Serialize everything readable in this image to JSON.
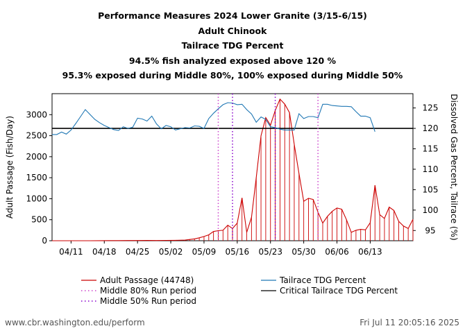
{
  "chart_data": {
    "type": "line",
    "title_lines": [
      "Performance Measures 2024 Lower Granite (3/15-6/15)",
      "Adult Chinook",
      "Tailrace TDG Percent",
      "94.5% fish analyzed exposed above 120 %",
      "95.3% exposed during Middle 80%, 100% exposed during Middle 50%"
    ],
    "xlabel": "",
    "ylabel_left": "Adult Passage (Fish/Day)",
    "ylabel_right": "Dissolved Gas Percent, Tailrace (%)",
    "x_start": "2024-04-07",
    "x_end": "2024-06-15",
    "xtick_labels": [
      "04/11",
      "04/18",
      "04/25",
      "05/02",
      "05/09",
      "05/16",
      "05/23",
      "05/30",
      "06/06",
      "06/13"
    ],
    "xtick_days": [
      4,
      11,
      18,
      25,
      32,
      39,
      46,
      53,
      60,
      67
    ],
    "ylim_left": [
      0,
      3500
    ],
    "yticks_left": [
      0,
      500,
      1000,
      1500,
      2000,
      2500,
      3000
    ],
    "ylim_right": [
      92.5,
      128.5
    ],
    "yticks_right": [
      95,
      100,
      105,
      110,
      115,
      120,
      125
    ],
    "critical_tdg": 120,
    "middle80_days": [
      35,
      56
    ],
    "middle50_days": [
      38,
      47
    ],
    "series": [
      {
        "name": "Adult Passage (44748)",
        "color": "#cc0000",
        "axis": "left",
        "values": [
          [
            0,
            0
          ],
          [
            8,
            0
          ],
          [
            10,
            2
          ],
          [
            12,
            3
          ],
          [
            14,
            3
          ],
          [
            16,
            5
          ],
          [
            18,
            5
          ],
          [
            20,
            7
          ],
          [
            22,
            5
          ],
          [
            24,
            8
          ],
          [
            26,
            10
          ],
          [
            28,
            15
          ],
          [
            29,
            30
          ],
          [
            30,
            45
          ],
          [
            31,
            70
          ],
          [
            32,
            100
          ],
          [
            33,
            140
          ],
          [
            34,
            220
          ],
          [
            35,
            240
          ],
          [
            36,
            250
          ],
          [
            37,
            370
          ],
          [
            38,
            290
          ],
          [
            39,
            420
          ],
          [
            40,
            1020
          ],
          [
            41,
            200
          ],
          [
            42,
            560
          ],
          [
            43,
            1500
          ],
          [
            44,
            2500
          ],
          [
            45,
            2930
          ],
          [
            46,
            2750
          ],
          [
            47,
            3100
          ],
          [
            48,
            3370
          ],
          [
            49,
            3250
          ],
          [
            50,
            3050
          ],
          [
            51,
            2300
          ],
          [
            52,
            1600
          ],
          [
            53,
            940
          ],
          [
            54,
            1010
          ],
          [
            55,
            980
          ],
          [
            56,
            680
          ],
          [
            57,
            420
          ],
          [
            58,
            580
          ],
          [
            59,
            700
          ],
          [
            60,
            780
          ],
          [
            61,
            750
          ],
          [
            62,
            500
          ],
          [
            63,
            200
          ],
          [
            64,
            250
          ],
          [
            65,
            270
          ],
          [
            66,
            260
          ],
          [
            67,
            430
          ],
          [
            68,
            1320
          ],
          [
            69,
            620
          ],
          [
            70,
            530
          ],
          [
            71,
            800
          ],
          [
            72,
            720
          ],
          [
            73,
            460
          ],
          [
            74,
            350
          ],
          [
            75,
            290
          ],
          [
            76,
            510
          ]
        ]
      },
      {
        "name": "Tailrace TDG Percent",
        "color": "#1f77b4",
        "axis": "right",
        "values": [
          [
            0,
            118.5
          ],
          [
            1,
            118.5
          ],
          [
            2,
            119.1
          ],
          [
            3,
            118.6
          ],
          [
            4,
            119.6
          ],
          [
            5,
            121.2
          ],
          [
            6,
            122.9
          ],
          [
            7,
            124.6
          ],
          [
            8,
            123.4
          ],
          [
            9,
            122.2
          ],
          [
            10,
            121.4
          ],
          [
            11,
            120.7
          ],
          [
            12,
            120.2
          ],
          [
            13,
            119.7
          ],
          [
            14,
            119.5
          ],
          [
            15,
            120.4
          ],
          [
            16,
            120.0
          ],
          [
            17,
            120.3
          ],
          [
            18,
            122.5
          ],
          [
            19,
            122.3
          ],
          [
            20,
            121.8
          ],
          [
            21,
            123.0
          ],
          [
            22,
            121.1
          ],
          [
            23,
            119.9
          ],
          [
            24,
            120.7
          ],
          [
            25,
            120.4
          ],
          [
            26,
            119.6
          ],
          [
            27,
            119.9
          ],
          [
            28,
            120.2
          ],
          [
            29,
            120.1
          ],
          [
            30,
            120.6
          ],
          [
            31,
            120.5
          ],
          [
            32,
            120.0
          ],
          [
            33,
            122.4
          ],
          [
            34,
            123.7
          ],
          [
            35,
            124.8
          ],
          [
            36,
            125.8
          ],
          [
            37,
            126.3
          ],
          [
            38,
            126.2
          ],
          [
            39,
            125.8
          ],
          [
            40,
            125.9
          ],
          [
            41,
            124.6
          ],
          [
            42,
            123.5
          ],
          [
            43,
            121.5
          ],
          [
            44,
            122.8
          ],
          [
            45,
            122.2
          ],
          [
            46,
            120.4
          ],
          [
            47,
            120.2
          ],
          [
            48,
            119.8
          ],
          [
            49,
            119.6
          ],
          [
            50,
            119.6
          ],
          [
            51,
            119.6
          ],
          [
            52,
            123.6
          ],
          [
            53,
            122.4
          ],
          [
            54,
            122.9
          ],
          [
            55,
            122.9
          ],
          [
            56,
            122.6
          ],
          [
            57,
            125.9
          ],
          [
            58,
            125.9
          ],
          [
            59,
            125.6
          ],
          [
            60,
            125.5
          ],
          [
            61,
            125.4
          ],
          [
            62,
            125.4
          ],
          [
            63,
            125.3
          ],
          [
            64,
            124.1
          ],
          [
            65,
            123.0
          ],
          [
            66,
            123.0
          ],
          [
            67,
            122.6
          ],
          [
            68,
            119.2
          ]
        ]
      }
    ],
    "legend": [
      {
        "label": "Adult Passage (44748)",
        "style": "solid",
        "color": "#cc0000"
      },
      {
        "label": "Middle 80% Run period",
        "style": "dotted",
        "color": "#cc44cc"
      },
      {
        "label": "Middle 50% Run period",
        "style": "dotted",
        "color": "#8800cc"
      },
      {
        "label": "Tailrace TDG Percent",
        "style": "solid",
        "color": "#1f77b4"
      },
      {
        "label": "Critical Tailrace TDG Percent",
        "style": "solid",
        "color": "#000000"
      }
    ],
    "legend_position": "bottom"
  },
  "footer": {
    "url": "www.cbr.washington.edu/perform",
    "timestamp": "Fri Jul 11 20:05:16 2025"
  }
}
